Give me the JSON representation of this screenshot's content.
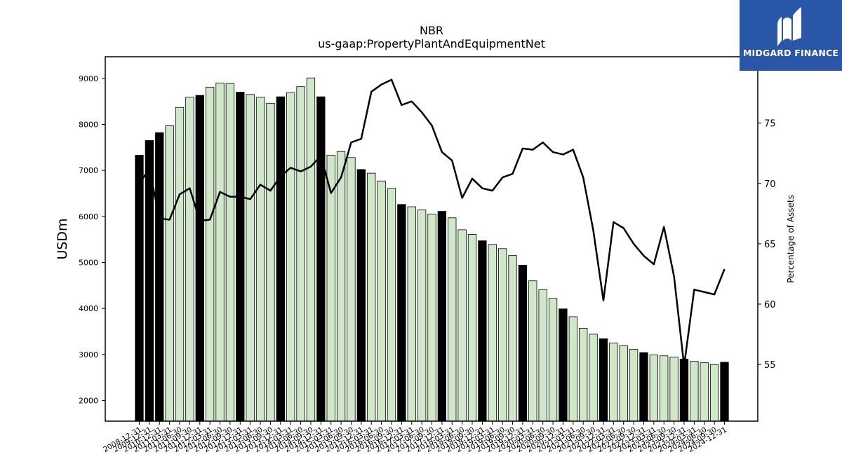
{
  "chart_data": {
    "type": "bar",
    "title": "NBR",
    "subtitle": "us-gaap:PropertyPlantAndEquipmentNet",
    "ylabel": "USDm",
    "y2label": "Percentage of Assets",
    "ylim": [
      1550,
      9470
    ],
    "y2lim": [
      50.3,
      80.5
    ],
    "yticks": [
      2000,
      3000,
      4000,
      5000,
      6000,
      7000,
      8000,
      9000
    ],
    "y2ticks": [
      55,
      60,
      65,
      70,
      75
    ],
    "colors": {
      "annual": "#000000",
      "quarterly": "#cfe8c8",
      "line": "#000000"
    },
    "categories": [
      "2008-12-31",
      "2009-12-31",
      "2010-12-31",
      "2011-03-31",
      "2011-06-30",
      "2011-09-30",
      "2011-12-31",
      "2012-03-31",
      "2012-06-30",
      "2012-09-30",
      "2012-12-31",
      "2013-03-31",
      "2013-06-30",
      "2013-09-30",
      "2013-12-31",
      "2014-03-31",
      "2014-06-30",
      "2014-09-30",
      "2014-12-31",
      "2015-03-31",
      "2015-06-30",
      "2015-09-30",
      "2015-12-31",
      "2016-03-31",
      "2016-06-30",
      "2016-09-30",
      "2016-12-31",
      "2017-03-31",
      "2017-06-30",
      "2017-09-30",
      "2017-12-31",
      "2018-03-31",
      "2018-06-30",
      "2018-09-30",
      "2018-12-31",
      "2019-03-31",
      "2019-06-30",
      "2019-09-30",
      "2019-12-31",
      "2020-03-31",
      "2020-06-30",
      "2020-09-30",
      "2020-12-31",
      "2021-03-31",
      "2021-06-30",
      "2021-09-30",
      "2021-12-31",
      "2022-03-31",
      "2022-06-30",
      "2022-09-30",
      "2022-12-31",
      "2023-03-31",
      "2023-06-30",
      "2023-09-30",
      "2023-12-31",
      "2024-03-31",
      "2024-06-30",
      "2024-09-30",
      "2024-12-31"
    ],
    "series": [
      {
        "kind": "bar",
        "values": [
          7330,
          7650,
          7820,
          7970,
          8370,
          8590,
          8630,
          8810,
          8900,
          8890,
          8700,
          8650,
          8590,
          8460,
          8600,
          8690,
          8820,
          9010,
          8600,
          7330,
          7410,
          7280,
          7020,
          6940,
          6770,
          6610,
          6260,
          6210,
          6140,
          6050,
          6110,
          5970,
          5710,
          5610,
          5470,
          5390,
          5300,
          5150,
          4940,
          4600,
          4410,
          4220,
          3990,
          3820,
          3570,
          3440,
          3340,
          3250,
          3190,
          3110,
          3040,
          2990,
          2970,
          2940,
          2900,
          2850,
          2820,
          2780,
          2830
        ],
        "annual": [
          true,
          true,
          true,
          false,
          false,
          false,
          true,
          false,
          false,
          false,
          true,
          false,
          false,
          false,
          true,
          false,
          false,
          false,
          true,
          false,
          false,
          false,
          true,
          false,
          false,
          false,
          true,
          false,
          false,
          false,
          true,
          false,
          false,
          false,
          true,
          false,
          false,
          false,
          true,
          false,
          false,
          false,
          true,
          false,
          false,
          false,
          true,
          false,
          false,
          false,
          true,
          false,
          false,
          false,
          true,
          false,
          false,
          false,
          true
        ]
      },
      {
        "kind": "line",
        "axis": "right",
        "values": [
          70.0,
          71.2,
          67.1,
          67.0,
          69.1,
          69.6,
          66.9,
          67.0,
          69.3,
          68.9,
          68.9,
          68.7,
          69.9,
          69.4,
          70.6,
          71.3,
          71.0,
          71.4,
          72.3,
          69.2,
          70.5,
          73.4,
          73.7,
          77.6,
          78.2,
          78.6,
          76.5,
          76.8,
          75.9,
          74.8,
          72.6,
          71.9,
          68.8,
          70.4,
          69.6,
          69.4,
          70.5,
          70.8,
          72.9,
          72.8,
          73.4,
          72.6,
          72.4,
          72.8,
          70.5,
          66.1,
          60.3,
          66.8,
          66.3,
          65.0,
          64.0,
          63.3,
          66.4,
          62.3,
          54.9,
          61.2,
          61.0,
          60.8,
          62.9
        ]
      }
    ]
  },
  "watermark": {
    "text": "MIDGARD FINANCE",
    "icon": "midgard-logo-icon",
    "background": "#2a56a8"
  }
}
